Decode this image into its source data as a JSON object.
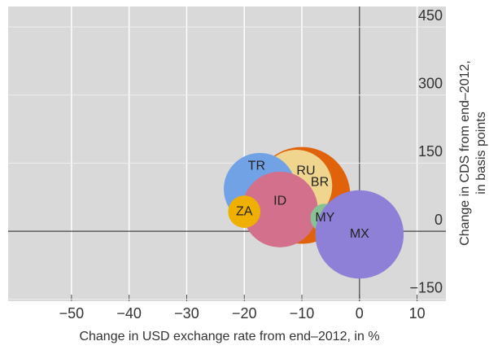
{
  "chart_data": {
    "type": "bubble",
    "xlabel": "Change in USD exchange rate from end–2012, in %",
    "ylabel": [
      "Change in CDS from end–2012,",
      "in basis points"
    ],
    "xlim": [
      -61,
      15
    ],
    "ylim": [
      -154,
      495
    ],
    "xticks": [
      {
        "value": -50,
        "label": "−50"
      },
      {
        "value": -40,
        "label": "−40"
      },
      {
        "value": -30,
        "label": "−30"
      },
      {
        "value": -20,
        "label": "−20"
      },
      {
        "value": -10,
        "label": "−10"
      },
      0,
      10
    ],
    "yticks": [
      {
        "value": -150,
        "label": "−150"
      },
      0,
      150,
      300,
      450
    ],
    "grid": true,
    "points": [
      {
        "label": "BR",
        "x": -10,
        "y": 79,
        "size": 36,
        "color": "#e0620a"
      },
      {
        "label": "RU",
        "x": -11,
        "y": 100,
        "size": 20,
        "color": "#efd58e"
      },
      {
        "label": "TR",
        "x": -17.3,
        "y": 93,
        "size": 20,
        "color": "#72a2e6"
      },
      {
        "label": "ID",
        "x": -13.8,
        "y": 48,
        "size": 22,
        "color": "#d3708c"
      },
      {
        "label": "ZA",
        "x": -20,
        "y": 43,
        "size": 4,
        "color": "#f0b000"
      },
      {
        "label": "MY",
        "x": -6,
        "y": 29,
        "size": 3.2,
        "color": "#86c294"
      },
      {
        "label": "MX",
        "x": 0,
        "y": -7,
        "size": 30,
        "color": "#8e80d6"
      }
    ]
  }
}
